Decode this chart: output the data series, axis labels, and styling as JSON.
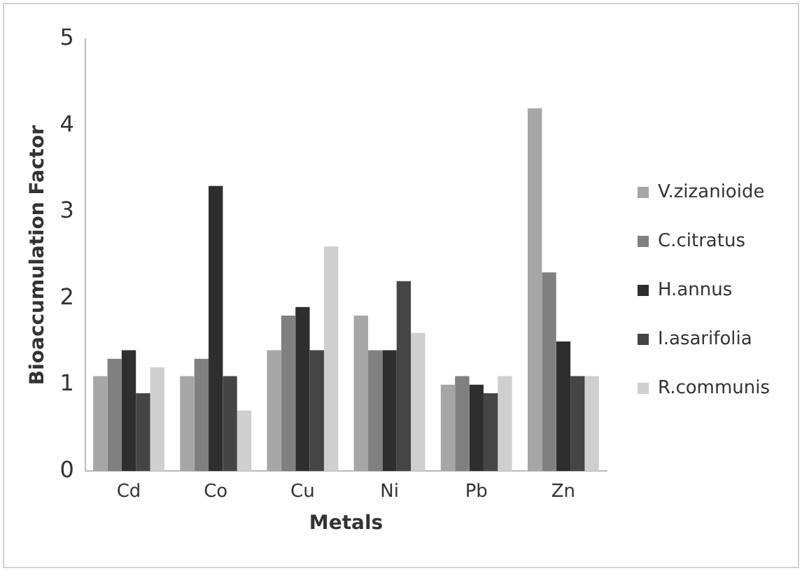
{
  "chart_data": {
    "type": "bar",
    "xlabel": "Metals",
    "ylabel": "Bioaccumulation Factor",
    "categories": [
      "Cd",
      "Co",
      "Cu",
      "Ni",
      "Pb",
      "Zn"
    ],
    "series": [
      {
        "name": "V.zizanioide",
        "color": "#a6a6a6",
        "values": [
          1.1,
          1.1,
          1.4,
          1.8,
          1.0,
          4.2
        ]
      },
      {
        "name": "C.citratus",
        "color": "#808080",
        "values": [
          1.3,
          1.3,
          1.8,
          1.4,
          1.1,
          2.3
        ]
      },
      {
        "name": "H.annus",
        "color": "#2e2e2e",
        "values": [
          1.4,
          3.3,
          1.9,
          1.4,
          1.0,
          1.5
        ]
      },
      {
        "name": "I.asarifolia",
        "color": "#454545",
        "values": [
          0.9,
          1.1,
          1.4,
          2.2,
          0.9,
          1.1
        ]
      },
      {
        "name": "R.communis",
        "color": "#cfcfcf",
        "values": [
          1.2,
          0.7,
          2.6,
          1.6,
          1.1,
          1.1
        ]
      }
    ],
    "ylim": [
      0,
      5
    ],
    "yticks": [
      0,
      1,
      2,
      3,
      4,
      5
    ],
    "grid": false,
    "legend": "right"
  }
}
